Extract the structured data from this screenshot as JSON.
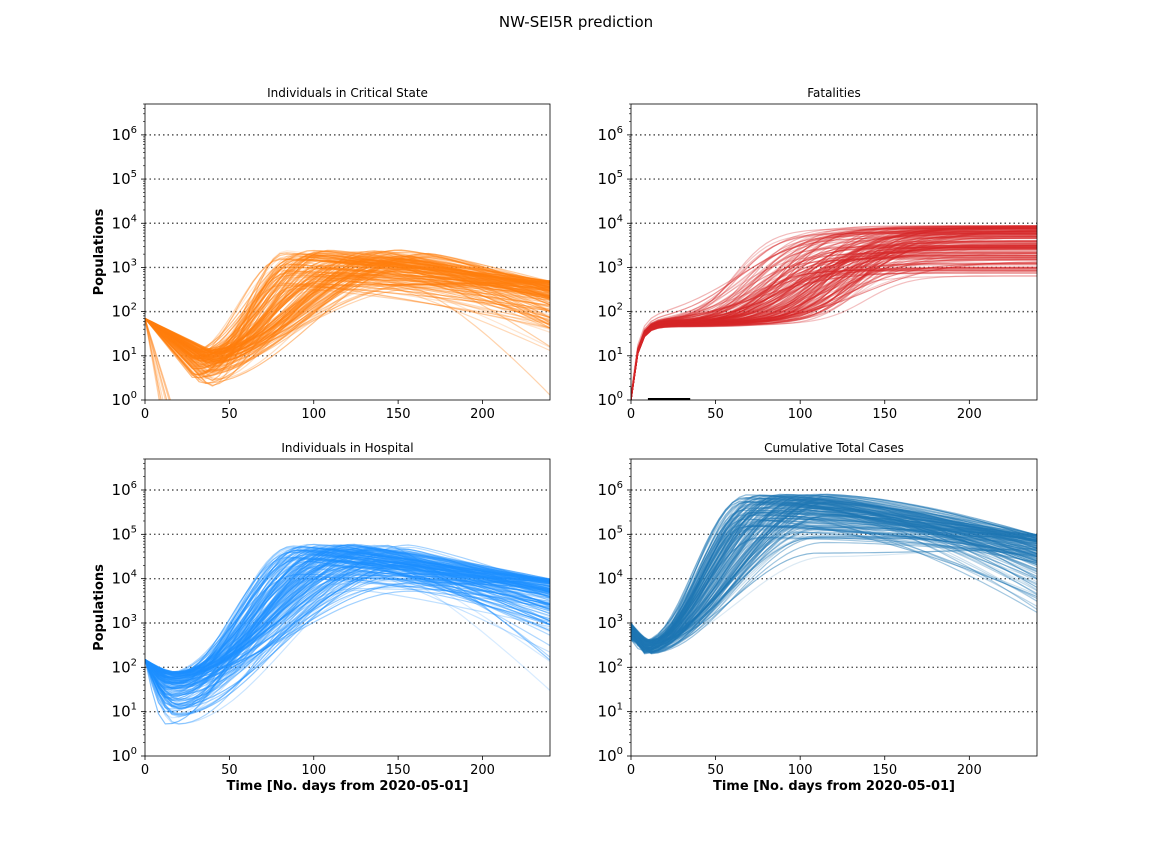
{
  "figure": {
    "title": "NW-SEI5R prediction"
  },
  "chart_data": [
    {
      "type": "line",
      "id": "critical",
      "title": "Individuals in Critical State",
      "xlabel": "",
      "ylabel": "Populations",
      "yscale": "log",
      "ylim": [
        1,
        5000000
      ],
      "xlim": [
        0,
        240
      ],
      "xticks": [
        0,
        50,
        100,
        150,
        200
      ],
      "yticks": [
        "10^0",
        "10^1",
        "10^2",
        "10^3",
        "10^4",
        "10^5",
        "10^6"
      ],
      "grid": "horizontal-dotted",
      "color": "#ff7f0e",
      "series_summary": {
        "start": 70,
        "trough_day": 35,
        "trough_value": 6,
        "peak_day_range": [
          80,
          170
        ],
        "peak_value_range": [
          300,
          2500
        ],
        "end_value_range": [
          1,
          500
        ],
        "early_extinction_day": 12
      }
    },
    {
      "type": "line",
      "id": "fatalities",
      "title": "Fatalities",
      "xlabel": "",
      "ylabel": "",
      "yscale": "log",
      "ylim": [
        1,
        5000000
      ],
      "xlim": [
        0,
        240
      ],
      "xticks": [
        0,
        50,
        100,
        150,
        200
      ],
      "yticks": [
        "10^0",
        "10^1",
        "10^2",
        "10^3",
        "10^4",
        "10^5",
        "10^6"
      ],
      "grid": "horizontal-dotted",
      "color": "#d62728",
      "observed": {
        "x": [
          10,
          35
        ],
        "y": [
          1,
          1
        ],
        "color": "#000000"
      },
      "series_summary": {
        "start": 1,
        "plateau_value": 55,
        "plateau_until_day": 40,
        "final_value_range": [
          600,
          9000
        ]
      }
    },
    {
      "type": "line",
      "id": "hospital",
      "title": "Individuals in Hospital",
      "xlabel": "Time [No. days from 2020-05-01]",
      "ylabel": "Populations",
      "yscale": "log",
      "ylim": [
        1,
        5000000
      ],
      "xlim": [
        0,
        240
      ],
      "xticks": [
        0,
        50,
        100,
        150,
        200
      ],
      "yticks": [
        "10^0",
        "10^1",
        "10^2",
        "10^3",
        "10^4",
        "10^5",
        "10^6"
      ],
      "grid": "horizontal-dotted",
      "color": "#1e90ff",
      "series_summary": {
        "start": 150,
        "trough_day": 15,
        "trough_value_range": [
          5,
          80
        ],
        "peak_day_range": [
          85,
          160
        ],
        "peak_value_range": [
          5000,
          60000
        ],
        "end_value_range": [
          1,
          10000
        ]
      }
    },
    {
      "type": "line",
      "id": "cumulative",
      "title": "Cumulative Total Cases",
      "xlabel": "Time [No. days from 2020-05-01]",
      "ylabel": "",
      "yscale": "log",
      "ylim": [
        1,
        5000000
      ],
      "xlim": [
        0,
        240
      ],
      "xticks": [
        0,
        50,
        100,
        150,
        200
      ],
      "yticks": [
        "10^0",
        "10^1",
        "10^2",
        "10^3",
        "10^4",
        "10^5",
        "10^6"
      ],
      "grid": "horizontal-dotted",
      "color": "#1f77b4",
      "series_summary": {
        "start_range": [
          400,
          1000
        ],
        "trough_day": 8,
        "trough_value": 250,
        "peak_day_range": [
          65,
          120
        ],
        "peak_value_range": [
          30000,
          800000
        ],
        "end_value_range": [
          700,
          100000
        ]
      }
    }
  ]
}
